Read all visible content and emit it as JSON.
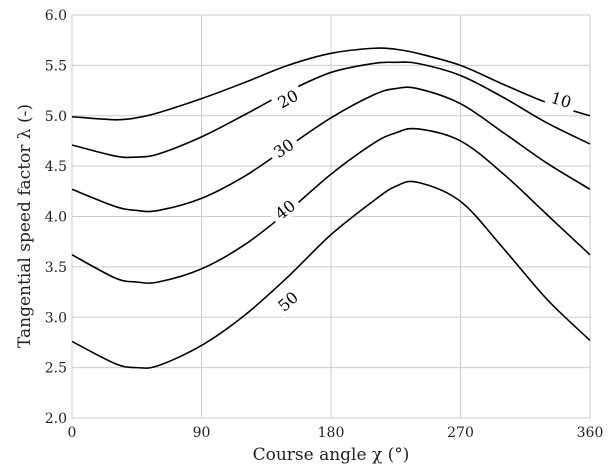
{
  "chart_data": {
    "type": "line",
    "xlabel": "Course angle χ (°)",
    "ylabel": "Tangential speed factor λ (-)",
    "xlim": [
      0,
      360
    ],
    "ylim": [
      2.0,
      6.0
    ],
    "x_ticks": [
      0,
      90,
      180,
      270,
      360
    ],
    "x_tick_labels": [
      "0",
      "90",
      "180",
      "270",
      "360"
    ],
    "y_ticks": [
      2.0,
      2.5,
      3.0,
      3.5,
      4.0,
      4.5,
      5.0,
      5.5,
      6.0
    ],
    "y_tick_labels": [
      "2.0",
      "2.5",
      "3.0",
      "3.5",
      "4.0",
      "4.5",
      "5.0",
      "5.5",
      "6.0"
    ],
    "grid": true,
    "legend": "none",
    "line_color": "#000000",
    "grid_color": "#cccccc",
    "series": [
      {
        "name": "10",
        "label_at": [
          340,
          5.16
        ],
        "x": [
          0,
          30,
          45,
          60,
          90,
          120,
          150,
          180,
          210,
          225,
          240,
          270,
          300,
          330,
          360
        ],
        "y": [
          4.99,
          4.96,
          4.98,
          5.03,
          5.17,
          5.33,
          5.5,
          5.62,
          5.67,
          5.66,
          5.62,
          5.5,
          5.31,
          5.13,
          5.0
        ]
      },
      {
        "name": "20",
        "label_at": [
          150,
          5.17
        ],
        "x": [
          0,
          30,
          45,
          60,
          90,
          120,
          150,
          180,
          210,
          225,
          240,
          270,
          300,
          330,
          360
        ],
        "y": [
          4.71,
          4.6,
          4.59,
          4.62,
          4.79,
          5.01,
          5.24,
          5.43,
          5.52,
          5.53,
          5.52,
          5.4,
          5.18,
          4.93,
          4.72
        ]
      },
      {
        "name": "30",
        "label_at": [
          147,
          4.68
        ],
        "x": [
          0,
          30,
          45,
          60,
          90,
          120,
          150,
          180,
          210,
          225,
          240,
          270,
          300,
          330,
          360
        ],
        "y": [
          4.27,
          4.1,
          4.06,
          4.06,
          4.18,
          4.4,
          4.69,
          4.98,
          5.21,
          5.27,
          5.27,
          5.12,
          4.83,
          4.53,
          4.27
        ]
      },
      {
        "name": "40",
        "label_at": [
          148,
          4.07
        ],
        "x": [
          0,
          30,
          45,
          60,
          90,
          120,
          150,
          180,
          210,
          225,
          240,
          270,
          300,
          330,
          360
        ],
        "y": [
          3.62,
          3.39,
          3.35,
          3.35,
          3.48,
          3.72,
          4.05,
          4.42,
          4.73,
          4.83,
          4.87,
          4.75,
          4.42,
          4.02,
          3.62
        ]
      },
      {
        "name": "50",
        "label_at": [
          150,
          3.16
        ],
        "x": [
          0,
          30,
          45,
          60,
          90,
          120,
          150,
          180,
          210,
          225,
          240,
          270,
          300,
          330,
          360
        ],
        "y": [
          2.76,
          2.54,
          2.5,
          2.52,
          2.72,
          3.02,
          3.4,
          3.82,
          4.16,
          4.3,
          4.34,
          4.15,
          3.68,
          3.18,
          2.77
        ]
      }
    ]
  }
}
